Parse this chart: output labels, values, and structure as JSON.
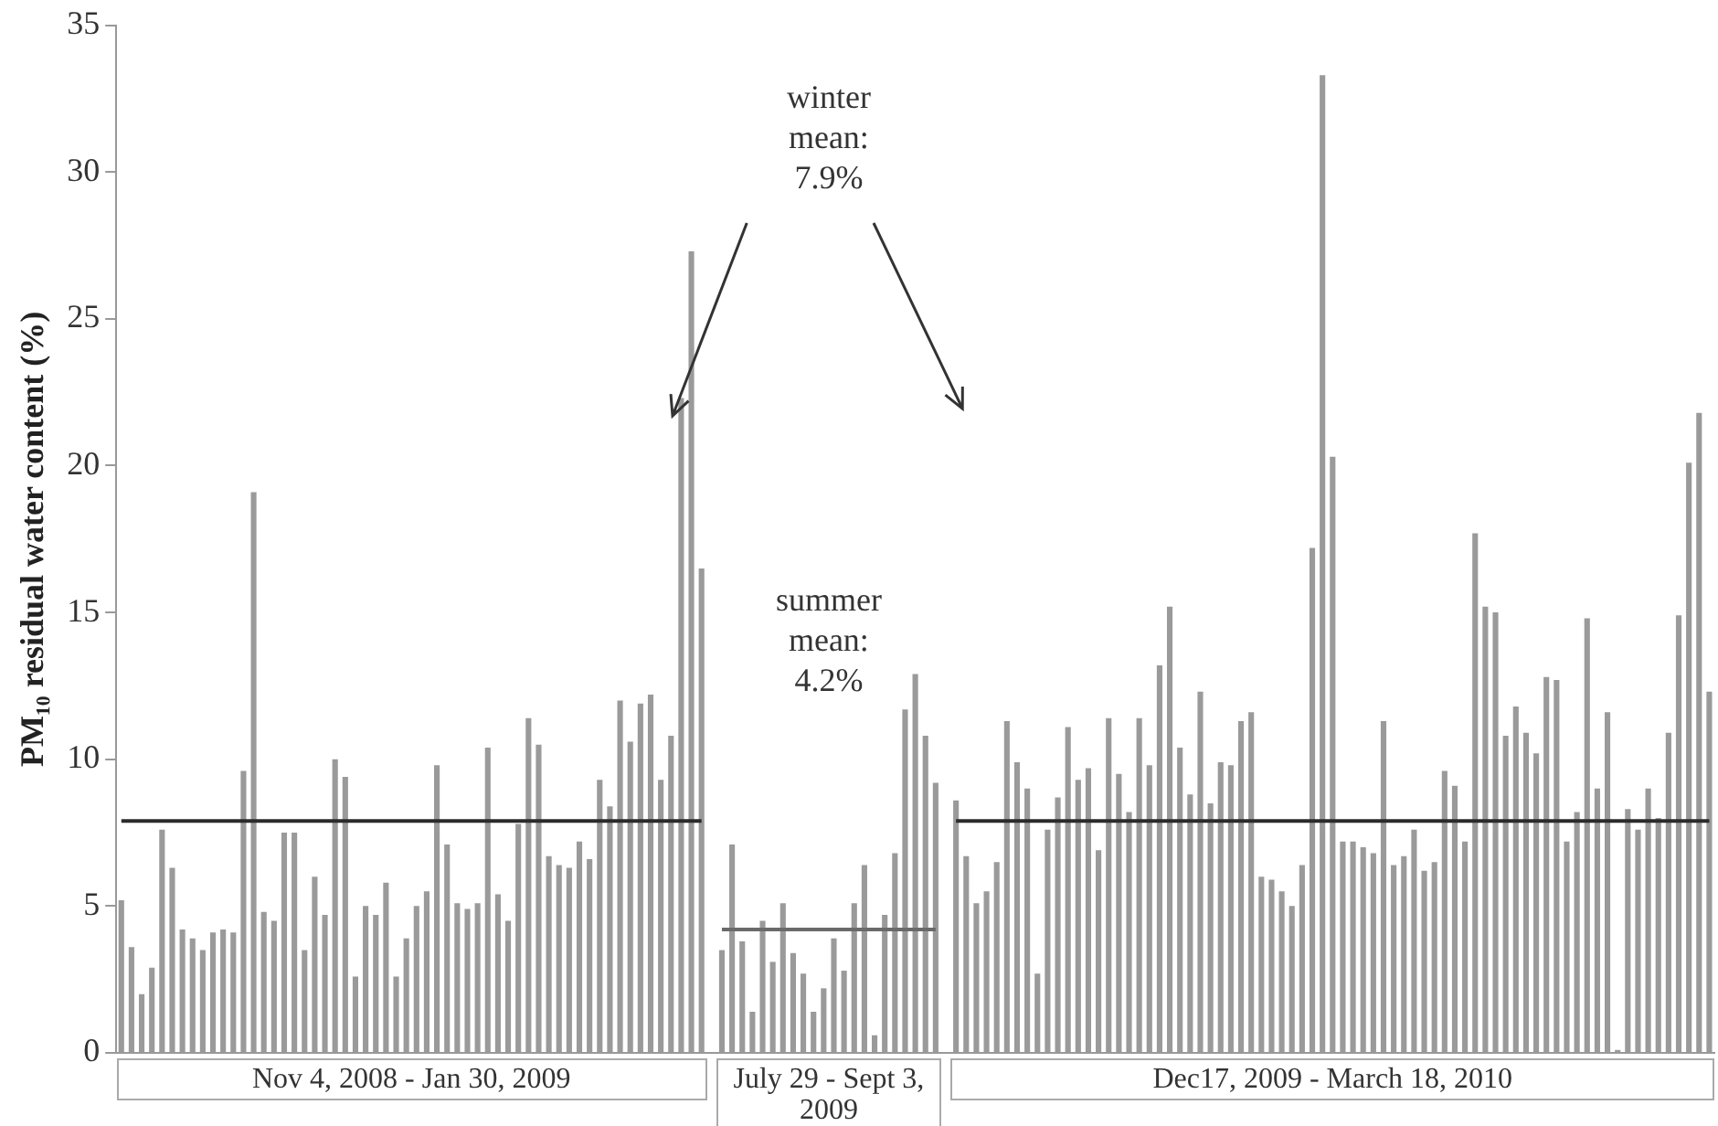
{
  "chart_data": {
    "type": "bar",
    "ylabel": "PM₁₀ residual water content (%)",
    "categories": [
      null,
      null,
      null,
      null,
      null,
      null,
      null,
      null,
      null,
      null,
      null,
      null,
      null,
      null,
      null,
      null,
      null,
      null,
      null,
      null,
      null,
      null,
      null,
      null,
      null,
      null,
      null,
      null,
      null,
      null,
      null,
      null,
      null,
      null,
      null,
      null,
      null,
      null,
      null,
      null,
      null,
      null,
      null,
      null,
      null,
      null,
      null,
      null,
      null,
      null,
      null,
      null,
      null,
      null,
      null,
      null,
      null,
      null,
      null,
      null,
      null,
      null,
      null,
      null,
      null,
      null,
      null,
      null,
      null,
      null,
      null,
      null,
      null,
      null,
      null,
      null,
      null,
      null,
      null,
      null,
      null,
      null,
      null,
      null,
      null,
      null,
      null,
      null,
      null,
      null,
      null,
      null,
      null,
      null,
      null,
      null,
      null,
      null,
      null,
      null,
      null,
      null,
      null,
      null,
      null,
      null,
      null,
      null,
      null,
      null,
      null,
      null,
      null,
      null,
      null,
      null,
      null,
      null,
      null,
      null,
      null,
      null,
      null,
      null,
      null,
      null,
      null,
      null,
      null,
      null,
      null,
      null,
      null,
      null,
      null,
      null,
      null,
      null,
      null,
      null,
      null,
      null,
      null,
      null,
      null,
      null,
      null,
      null,
      null,
      null,
      null,
      null,
      null,
      null,
      null,
      null,
      null
    ],
    "series": [
      {
        "color": "#9a9a9a",
        "values": [
          5.2,
          3.6,
          2.0,
          2.9,
          7.6,
          6.3,
          4.2,
          3.9,
          3.5,
          4.1,
          4.2,
          4.1,
          9.6,
          19.1,
          4.8,
          4.5,
          7.5,
          7.5,
          3.5,
          6.0,
          4.7,
          10.0,
          9.4,
          2.6,
          5.0,
          4.7,
          5.8,
          2.6,
          3.9,
          5.0,
          5.5,
          9.8,
          7.1,
          5.1,
          4.9,
          5.1,
          10.4,
          5.4,
          4.5,
          7.8,
          11.4,
          10.5,
          6.7,
          6.4,
          6.3,
          7.2,
          6.6,
          9.3,
          8.4,
          12.0,
          10.6,
          11.9,
          12.2,
          9.3,
          10.8,
          22.3,
          27.3,
          16.5,
          null,
          3.5,
          7.1,
          3.8,
          1.4,
          4.5,
          3.1,
          5.1,
          3.4,
          2.7,
          1.4,
          2.2,
          3.9,
          2.8,
          5.1,
          6.4,
          0.6,
          4.7,
          6.8,
          11.7,
          12.9,
          10.8,
          9.2,
          null,
          8.6,
          6.7,
          5.1,
          5.5,
          6.5,
          11.3,
          9.9,
          9.0,
          2.7,
          7.6,
          8.7,
          11.1,
          9.3,
          9.7,
          6.9,
          11.4,
          9.5,
          8.2,
          11.4,
          9.8,
          13.2,
          15.2,
          10.4,
          8.8,
          12.3,
          8.5,
          9.9,
          9.8,
          11.3,
          11.6,
          6.0,
          5.9,
          5.5,
          5.0,
          6.4,
          17.2,
          33.3,
          20.3,
          7.2,
          7.2,
          7.0,
          6.8,
          11.3,
          6.4,
          6.7,
          7.6,
          6.2,
          6.5,
          9.6,
          9.1,
          7.2,
          17.7,
          15.2,
          15.0,
          10.8,
          11.8,
          10.9,
          10.2,
          12.8,
          12.7,
          7.2,
          8.2,
          14.8,
          9.0,
          11.6,
          0.1,
          8.3,
          7.6,
          9.0,
          8.0,
          10.9,
          14.9,
          20.1,
          21.8,
          12.3
        ]
      },
      {
        "type": "line",
        "color": "#2b2b2b",
        "values": [
          7.9,
          7.9,
          7.9,
          7.9,
          7.9,
          7.9,
          7.9,
          7.9,
          7.9,
          7.9,
          7.9,
          7.9,
          7.9,
          7.9,
          7.9,
          7.9,
          7.9,
          7.9,
          7.9,
          7.9,
          7.9,
          7.9,
          7.9,
          7.9,
          7.9,
          7.9,
          7.9,
          7.9,
          7.9,
          7.9,
          7.9,
          7.9,
          7.9,
          7.9,
          7.9,
          7.9,
          7.9,
          7.9,
          7.9,
          7.9,
          7.9,
          7.9,
          7.9,
          7.9,
          7.9,
          7.9,
          7.9,
          7.9,
          7.9,
          7.9,
          7.9,
          7.9,
          7.9,
          7.9,
          7.9,
          7.9,
          7.9,
          7.9,
          null,
          null,
          null,
          null,
          null,
          null,
          null,
          null,
          null,
          null,
          null,
          null,
          null,
          null,
          null,
          null,
          null,
          null,
          null,
          null,
          null,
          null,
          null,
          null,
          7.9,
          7.9,
          7.9,
          7.9,
          7.9,
          7.9,
          7.9,
          7.9,
          7.9,
          7.9,
          7.9,
          7.9,
          7.9,
          7.9,
          7.9,
          7.9,
          7.9,
          7.9,
          7.9,
          7.9,
          7.9,
          7.9,
          7.9,
          7.9,
          7.9,
          7.9,
          7.9,
          7.9,
          7.9,
          7.9,
          7.9,
          7.9,
          7.9,
          7.9,
          7.9,
          7.9,
          7.9,
          7.9,
          7.9,
          7.9,
          7.9,
          7.9,
          7.9,
          7.9,
          7.9,
          7.9,
          7.9,
          7.9,
          7.9,
          7.9,
          7.9,
          7.9,
          7.9,
          7.9,
          7.9,
          7.9,
          7.9,
          7.9,
          7.9,
          7.9,
          7.9,
          7.9,
          7.9,
          7.9,
          7.9,
          7.9,
          7.9,
          7.9,
          7.9,
          7.9,
          7.9,
          7.9,
          7.9,
          7.9,
          7.9
        ]
      },
      {
        "type": "line",
        "color": "#6a6a6a",
        "values": [
          null,
          null,
          null,
          null,
          null,
          null,
          null,
          null,
          null,
          null,
          null,
          null,
          null,
          null,
          null,
          null,
          null,
          null,
          null,
          null,
          null,
          null,
          null,
          null,
          null,
          null,
          null,
          null,
          null,
          null,
          null,
          null,
          null,
          null,
          null,
          null,
          null,
          null,
          null,
          null,
          null,
          null,
          null,
          null,
          null,
          null,
          null,
          null,
          null,
          null,
          null,
          null,
          null,
          null,
          null,
          null,
          null,
          null,
          null,
          4.2,
          4.2,
          4.2,
          4.2,
          4.2,
          4.2,
          4.2,
          4.2,
          4.2,
          4.2,
          4.2,
          4.2,
          4.2,
          4.2,
          4.2,
          4.2,
          4.2,
          4.2,
          4.2,
          4.2,
          4.2,
          4.2,
          null,
          null,
          null,
          null,
          null,
          null,
          null,
          null,
          null,
          null,
          null,
          null,
          null,
          null,
          null,
          null,
          null,
          null,
          null,
          null,
          null,
          null,
          null,
          null,
          null,
          null,
          null,
          null,
          null,
          null,
          null,
          null,
          null,
          null,
          null,
          null,
          null,
          null,
          null,
          null,
          null,
          null,
          null,
          null,
          null,
          null,
          null,
          null,
          null,
          null,
          null,
          null,
          null,
          null,
          null,
          null,
          null,
          null,
          null,
          null,
          null,
          null,
          null,
          null,
          null,
          null,
          null,
          null,
          null,
          null,
          null,
          null,
          null,
          null,
          null,
          null
        ]
      }
    ],
    "ylim": [
      0,
      35
    ],
    "yticks": [
      0,
      5,
      10,
      15,
      20,
      25,
      30,
      35
    ],
    "grid": false,
    "legend": false,
    "tick_labels": "y",
    "annotations": [
      "winter\nmean:\n7.9%",
      "summer\nmean:\n4.2%",
      "Nov 4, 2008 -  Jan 30, 2009",
      "July 29 - Sept 3, 2009",
      "Dec17, 2009 -  March 18, 2010"
    ]
  }
}
